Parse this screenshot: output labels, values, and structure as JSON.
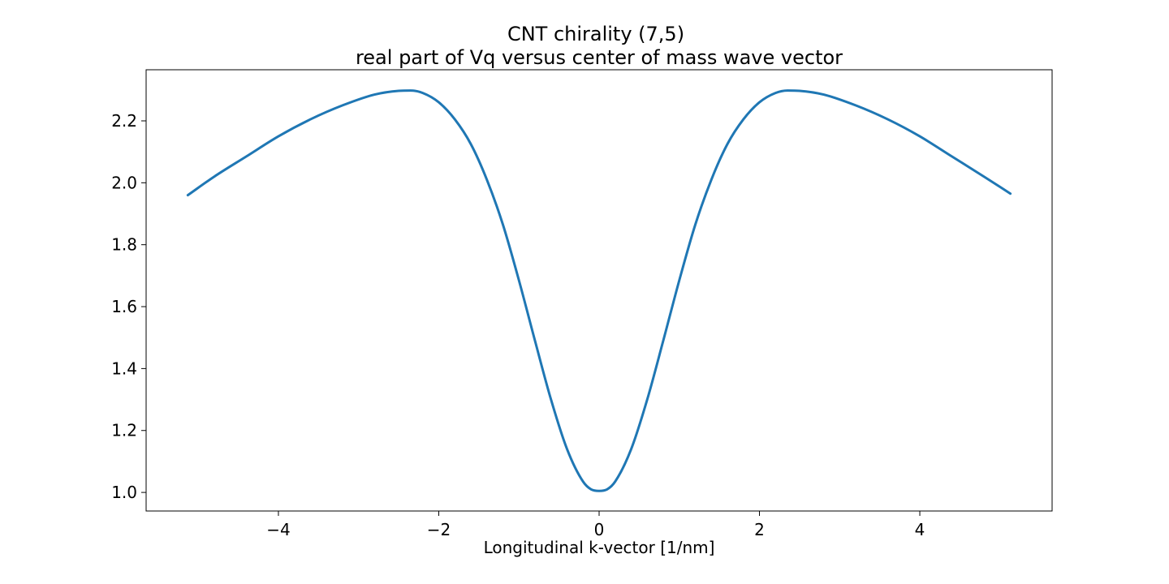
{
  "chart_data": {
    "type": "line",
    "title": "CNT chirality (7,5)",
    "subtitle": "real part of Vq versus center of mass wave vector",
    "xlabel": "Longitudinal k-vector [1/nm]",
    "ylabel": "",
    "xlim": [
      -5.65,
      5.65
    ],
    "ylim": [
      0.94,
      2.365
    ],
    "xticks": [
      -4,
      -2,
      0,
      2,
      4
    ],
    "xtick_labels": [
      "−4",
      "−2",
      "0",
      "2",
      "4"
    ],
    "yticks": [
      1.0,
      1.2,
      1.4,
      1.6,
      1.8,
      2.0,
      2.2
    ],
    "ytick_labels": [
      "1.0",
      "1.2",
      "1.4",
      "1.6",
      "1.8",
      "2.0",
      "2.2"
    ],
    "grid": false,
    "legend": "none",
    "series": [
      {
        "color": "#1f77b4",
        "x": [
          -5.13,
          -4.8,
          -4.4,
          -4.0,
          -3.6,
          -3.2,
          -2.8,
          -2.5,
          -2.35,
          -2.2,
          -2.0,
          -1.8,
          -1.6,
          -1.4,
          -1.2,
          -1.0,
          -0.8,
          -0.6,
          -0.4,
          -0.2,
          -0.1,
          0.0,
          0.1,
          0.2,
          0.4,
          0.6,
          0.8,
          1.0,
          1.2,
          1.4,
          1.6,
          1.8,
          2.0,
          2.2,
          2.35,
          2.5,
          2.8,
          3.2,
          3.6,
          4.0,
          4.4,
          4.8,
          5.13
        ],
        "y": [
          1.96,
          2.02,
          2.085,
          2.15,
          2.205,
          2.25,
          2.285,
          2.297,
          2.298,
          2.29,
          2.26,
          2.205,
          2.125,
          2.01,
          1.865,
          1.685,
          1.49,
          1.3,
          1.14,
          1.035,
          1.01,
          1.005,
          1.01,
          1.035,
          1.14,
          1.3,
          1.49,
          1.685,
          1.865,
          2.01,
          2.125,
          2.205,
          2.26,
          2.29,
          2.298,
          2.297,
          2.285,
          2.25,
          2.205,
          2.15,
          2.085,
          2.02,
          1.965
        ]
      }
    ]
  }
}
